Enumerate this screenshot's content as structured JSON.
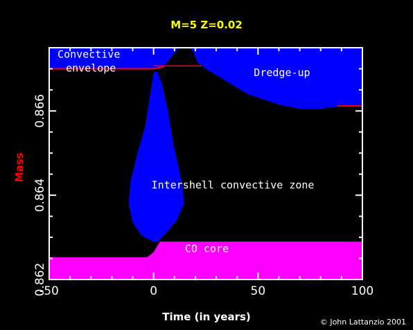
{
  "chart_data": {
    "type": "area",
    "title": "M=5 Z=0.02",
    "xlabel": "Time (in years)",
    "ylabel": "Mass",
    "xlim": [
      -50,
      100
    ],
    "ylim": [
      0.862,
      0.8675
    ],
    "x_ticks": [
      -50,
      0,
      50,
      100
    ],
    "y_ticks": [
      0.862,
      0.864,
      0.866
    ],
    "y_tick_labels": [
      "0.862",
      "0.864",
      "0.866"
    ],
    "x_tick_labels": [
      "-50",
      "0",
      "50",
      "100"
    ],
    "grid": false,
    "credit": "© John Lattanzio 2001",
    "colors": {
      "background": "#000000",
      "title": "#ffff00",
      "ylabel": "#ff0000",
      "convective_regions": "#0000ff",
      "co_core": "#ff00ff",
      "boundary_line": "#ff0000",
      "text": "#ffffff"
    },
    "regions": [
      {
        "name": "Convective envelope",
        "color": "#0000ff",
        "lower_boundary": [
          [
            -50,
            0.867
          ],
          [
            -35,
            0.867
          ],
          [
            0,
            0.867
          ],
          [
            5,
            0.86705
          ],
          [
            8,
            0.86725
          ],
          [
            12,
            0.8675
          ],
          [
            16,
            0.8676
          ],
          [
            19,
            0.8674
          ],
          [
            21,
            0.86715
          ],
          [
            25,
            0.867
          ],
          [
            30,
            0.86685
          ],
          [
            45,
            0.8664
          ],
          [
            60,
            0.86615
          ],
          [
            70,
            0.86605
          ],
          [
            80,
            0.86605
          ],
          [
            90,
            0.86612
          ],
          [
            100,
            0.86612
          ]
        ]
      },
      {
        "name": "Intershell convective zone",
        "color": "#0000ff",
        "outline": [
          [
            -0.5,
            0.8629
          ],
          [
            -6,
            0.86305
          ],
          [
            -10,
            0.86335
          ],
          [
            -12,
            0.8638
          ],
          [
            -11,
            0.86435
          ],
          [
            -8,
            0.86495
          ],
          [
            -4,
            0.86565
          ],
          [
            -1.5,
            0.86645
          ],
          [
            0,
            0.8669
          ],
          [
            1.5,
            0.86695
          ],
          [
            4,
            0.86665
          ],
          [
            7,
            0.86595
          ],
          [
            9.5,
            0.8652
          ],
          [
            12,
            0.86465
          ],
          [
            14,
            0.86415
          ],
          [
            14.5,
            0.8638
          ],
          [
            11,
            0.8634
          ],
          [
            6,
            0.8631
          ],
          [
            2,
            0.8629
          ]
        ]
      },
      {
        "name": "CO core",
        "color": "#ff00ff",
        "upper_boundary": [
          [
            -50,
            0.86253
          ],
          [
            -3,
            0.86253
          ],
          [
            0,
            0.86265
          ],
          [
            3,
            0.8629
          ],
          [
            100,
            0.8629
          ]
        ]
      }
    ],
    "annotations": [
      {
        "text": "Convective",
        "x": -46,
        "y": 0.86726
      },
      {
        "text": "envelope",
        "x": -42,
        "y": 0.86693
      },
      {
        "text": "Dredge-up",
        "x": 48,
        "y": 0.86683
      },
      {
        "text": "Intershell convective zone",
        "x": -1,
        "y": 0.86416
      },
      {
        "text": "CO core",
        "x": 15,
        "y": 0.86265
      }
    ]
  }
}
